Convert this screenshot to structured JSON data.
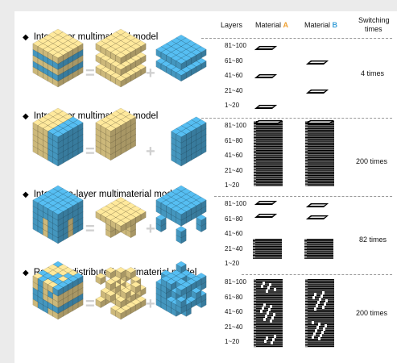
{
  "header": {
    "layers": "Layers",
    "material_a_prefix": "Material ",
    "material_a_letter": "A",
    "material_b_prefix": "Material ",
    "material_b_letter": "B",
    "switching_line1": "Switching",
    "switching_line2": "times"
  },
  "layer_ranges": [
    "81~100",
    "61~80",
    "41~60",
    "21~40",
    "1~20"
  ],
  "sections": [
    {
      "title": "Inter-layer multimaterial model",
      "switching": "4 times"
    },
    {
      "title": "Intra-layer multimaterial model",
      "switching": "200 times"
    },
    {
      "title": "Inter/Intra-layer multimaterial model",
      "switching": "82 times"
    },
    {
      "title": "Random distributed multimaterial model",
      "switching": "200 times"
    }
  ],
  "symbols": {
    "equals": "=",
    "plus": "+"
  },
  "colors": {
    "material_a": "#f0d890",
    "material_b": "#50b0e0",
    "background": "#ebebeb"
  }
}
